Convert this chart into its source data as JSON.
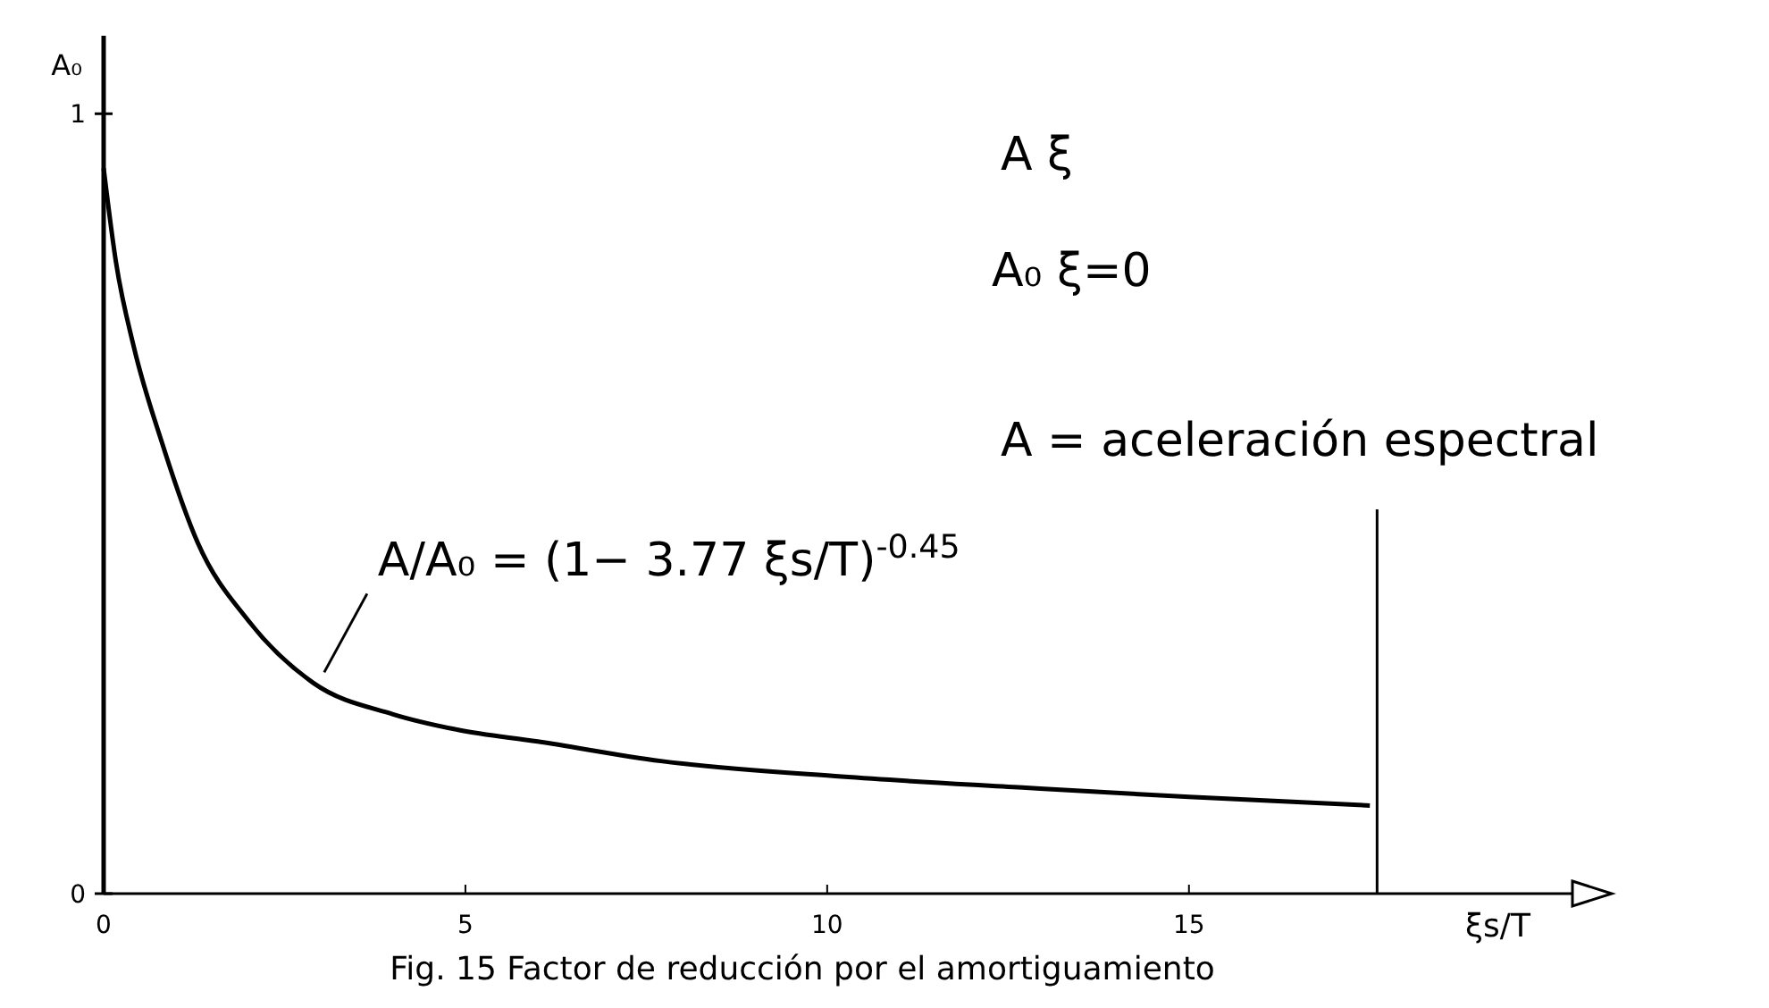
{
  "chart_data": {
    "type": "line",
    "title": "Fig. 15 Factor de reducción por el amortiguamiento",
    "xlabel": "ξs/T",
    "ylabel": "A₀",
    "x": [
      0,
      0.17,
      0.42,
      0.8,
      1.3,
      2.0,
      2.9,
      4.0,
      4.9,
      6.0,
      7.7,
      10.2,
      12.7,
      15.0,
      17.5
    ],
    "series": [
      {
        "color": "#000000",
        "values": [
          0.93,
          0.81,
          0.7,
          0.58,
          0.45,
          0.35,
          0.27,
          0.23,
          0.21,
          0.195,
          0.17,
          0.15,
          0.136,
          0.124,
          0.113
        ]
      }
    ],
    "xlim": [
      0,
      20.3
    ],
    "ylim": [
      0,
      1.1
    ],
    "xticks": [
      0,
      5,
      10,
      15
    ],
    "yticks": [
      0,
      1
    ],
    "grid": false,
    "marker": "none",
    "line_style": "solid",
    "ref_lines": [
      {
        "axis": "x",
        "value": 17.6,
        "color": "#000000"
      }
    ],
    "annotations": [
      "A   ξ",
      "A₀   ξ=0",
      "A = aceleración espectral",
      {
        "text": "A/A₀ = (1− 3.77 ξs/T)$^{-0.45}$",
        "x": 2.9,
        "y": 0.27
      }
    ]
  }
}
